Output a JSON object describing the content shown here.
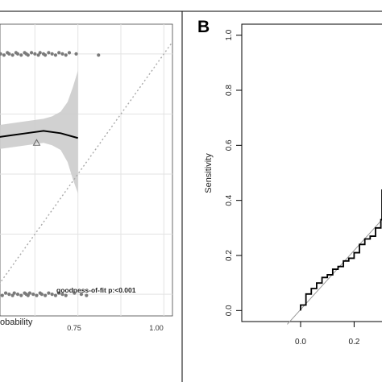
{
  "colors": {
    "frame": "#000000",
    "panel_a_bg": "#ffffff",
    "grid": "#e3e3e3",
    "points": "#7a7a7a",
    "ribbon": "#cccccc",
    "diagonal": "#aaaaaa",
    "roc_curve": "#000000",
    "roc_reference": "#999999"
  },
  "chart_data": [
    {
      "panel": "A",
      "type": "scatter",
      "xlabel_visible": "obability",
      "annotation": "goodness-of-fit p:<0.001",
      "x_tick_labels": [
        "0.75",
        "1.00"
      ],
      "xlim": [
        0.0,
        1.05
      ],
      "ylim": [
        -0.05,
        1.05
      ],
      "grid": true,
      "series": [
        {
          "kind": "points_outcome_1",
          "x": [
            0.0,
            0.01,
            0.02,
            0.03,
            0.05,
            0.07,
            0.09,
            0.1,
            0.12,
            0.14,
            0.15,
            0.17,
            0.19,
            0.2,
            0.21,
            0.23,
            0.25,
            0.27,
            0.28,
            0.3,
            0.31,
            0.33,
            0.35,
            0.37,
            0.39,
            0.41,
            0.43,
            0.45,
            0.49,
            0.62
          ],
          "y": [
            1.0,
            1.0,
            1.0,
            1.0,
            1.0,
            1.0,
            1.0,
            1.0,
            1.0,
            1.0,
            1.0,
            1.0,
            1.0,
            1.0,
            1.0,
            1.0,
            1.0,
            1.0,
            1.0,
            1.0,
            1.0,
            1.0,
            1.0,
            1.0,
            1.0,
            1.0,
            1.0,
            1.0,
            1.0,
            1.0
          ]
        },
        {
          "kind": "points_outcome_0",
          "x": [
            0.0,
            0.01,
            0.02,
            0.03,
            0.04,
            0.06,
            0.08,
            0.1,
            0.12,
            0.13,
            0.15,
            0.17,
            0.19,
            0.2,
            0.21,
            0.22,
            0.24,
            0.26,
            0.28,
            0.29,
            0.31,
            0.33,
            0.35,
            0.37,
            0.39,
            0.41,
            0.43,
            0.48,
            0.52,
            0.55
          ],
          "y": [
            0.0,
            0.0,
            0.0,
            0.0,
            0.0,
            0.0,
            0.0,
            0.0,
            0.0,
            0.0,
            0.0,
            0.0,
            0.0,
            0.0,
            0.0,
            0.0,
            0.0,
            0.0,
            0.0,
            0.0,
            0.0,
            0.0,
            0.0,
            0.0,
            0.0,
            0.0,
            0.0,
            0.0,
            0.0,
            0.0
          ]
        },
        {
          "kind": "smooth_fit",
          "x": [
            0.0,
            0.1,
            0.2,
            0.3,
            0.4,
            0.5
          ],
          "y": [
            0.65,
            0.66,
            0.67,
            0.68,
            0.67,
            0.65
          ]
        },
        {
          "kind": "confidence_band",
          "x": [
            0.0,
            0.1,
            0.2,
            0.3,
            0.35,
            0.4,
            0.44,
            0.47,
            0.5
          ],
          "lower": [
            0.6,
            0.61,
            0.62,
            0.63,
            0.62,
            0.6,
            0.55,
            0.48,
            0.42
          ],
          "upper": [
            0.7,
            0.71,
            0.72,
            0.73,
            0.74,
            0.76,
            0.8,
            0.86,
            0.93
          ]
        },
        {
          "kind": "reference_diagonal",
          "x": [
            0.0,
            1.05
          ],
          "y": [
            0.0,
            1.05
          ]
        },
        {
          "kind": "triangle_marker",
          "x": [
            0.26
          ],
          "y": [
            0.63
          ]
        }
      ]
    },
    {
      "panel": "B",
      "panel_label": "B",
      "type": "line",
      "ylabel": "Sensitivity",
      "y_ticks": [
        "0.0",
        "0.2",
        "0.4",
        "0.6",
        "0.8",
        "1.0"
      ],
      "x_ticks": [
        "0.0",
        "0.2"
      ],
      "xlim": [
        -0.05,
        1.05
      ],
      "ylim": [
        -0.04,
        1.04
      ],
      "grid": false,
      "series": [
        {
          "kind": "roc_curve",
          "x": [
            0.0,
            0.0,
            0.02,
            0.02,
            0.04,
            0.04,
            0.06,
            0.06,
            0.08,
            0.08,
            0.1,
            0.1,
            0.12,
            0.12,
            0.14,
            0.14,
            0.16,
            0.16,
            0.18,
            0.18,
            0.2,
            0.2,
            0.22,
            0.22,
            0.24,
            0.24,
            0.26,
            0.26,
            0.28,
            0.28,
            0.3,
            0.3,
            0.32,
            0.32,
            0.34,
            0.34,
            0.36,
            0.36,
            0.38,
            0.38,
            0.4,
            0.4,
            0.42,
            0.42,
            0.44
          ],
          "y": [
            0.0,
            0.02,
            0.02,
            0.06,
            0.06,
            0.08,
            0.08,
            0.1,
            0.1,
            0.12,
            0.12,
            0.13,
            0.13,
            0.15,
            0.15,
            0.16,
            0.16,
            0.18,
            0.18,
            0.19,
            0.19,
            0.21,
            0.21,
            0.24,
            0.24,
            0.26,
            0.26,
            0.27,
            0.27,
            0.3,
            0.3,
            0.33,
            0.33,
            0.36,
            0.36,
            0.38,
            0.38,
            0.41,
            0.41,
            0.43,
            0.43,
            0.44,
            0.44,
            0.41,
            0.41
          ]
        },
        {
          "kind": "reference_line",
          "x": [
            -0.05,
            0.44
          ],
          "y": [
            -0.05,
            0.33
          ]
        }
      ]
    }
  ]
}
